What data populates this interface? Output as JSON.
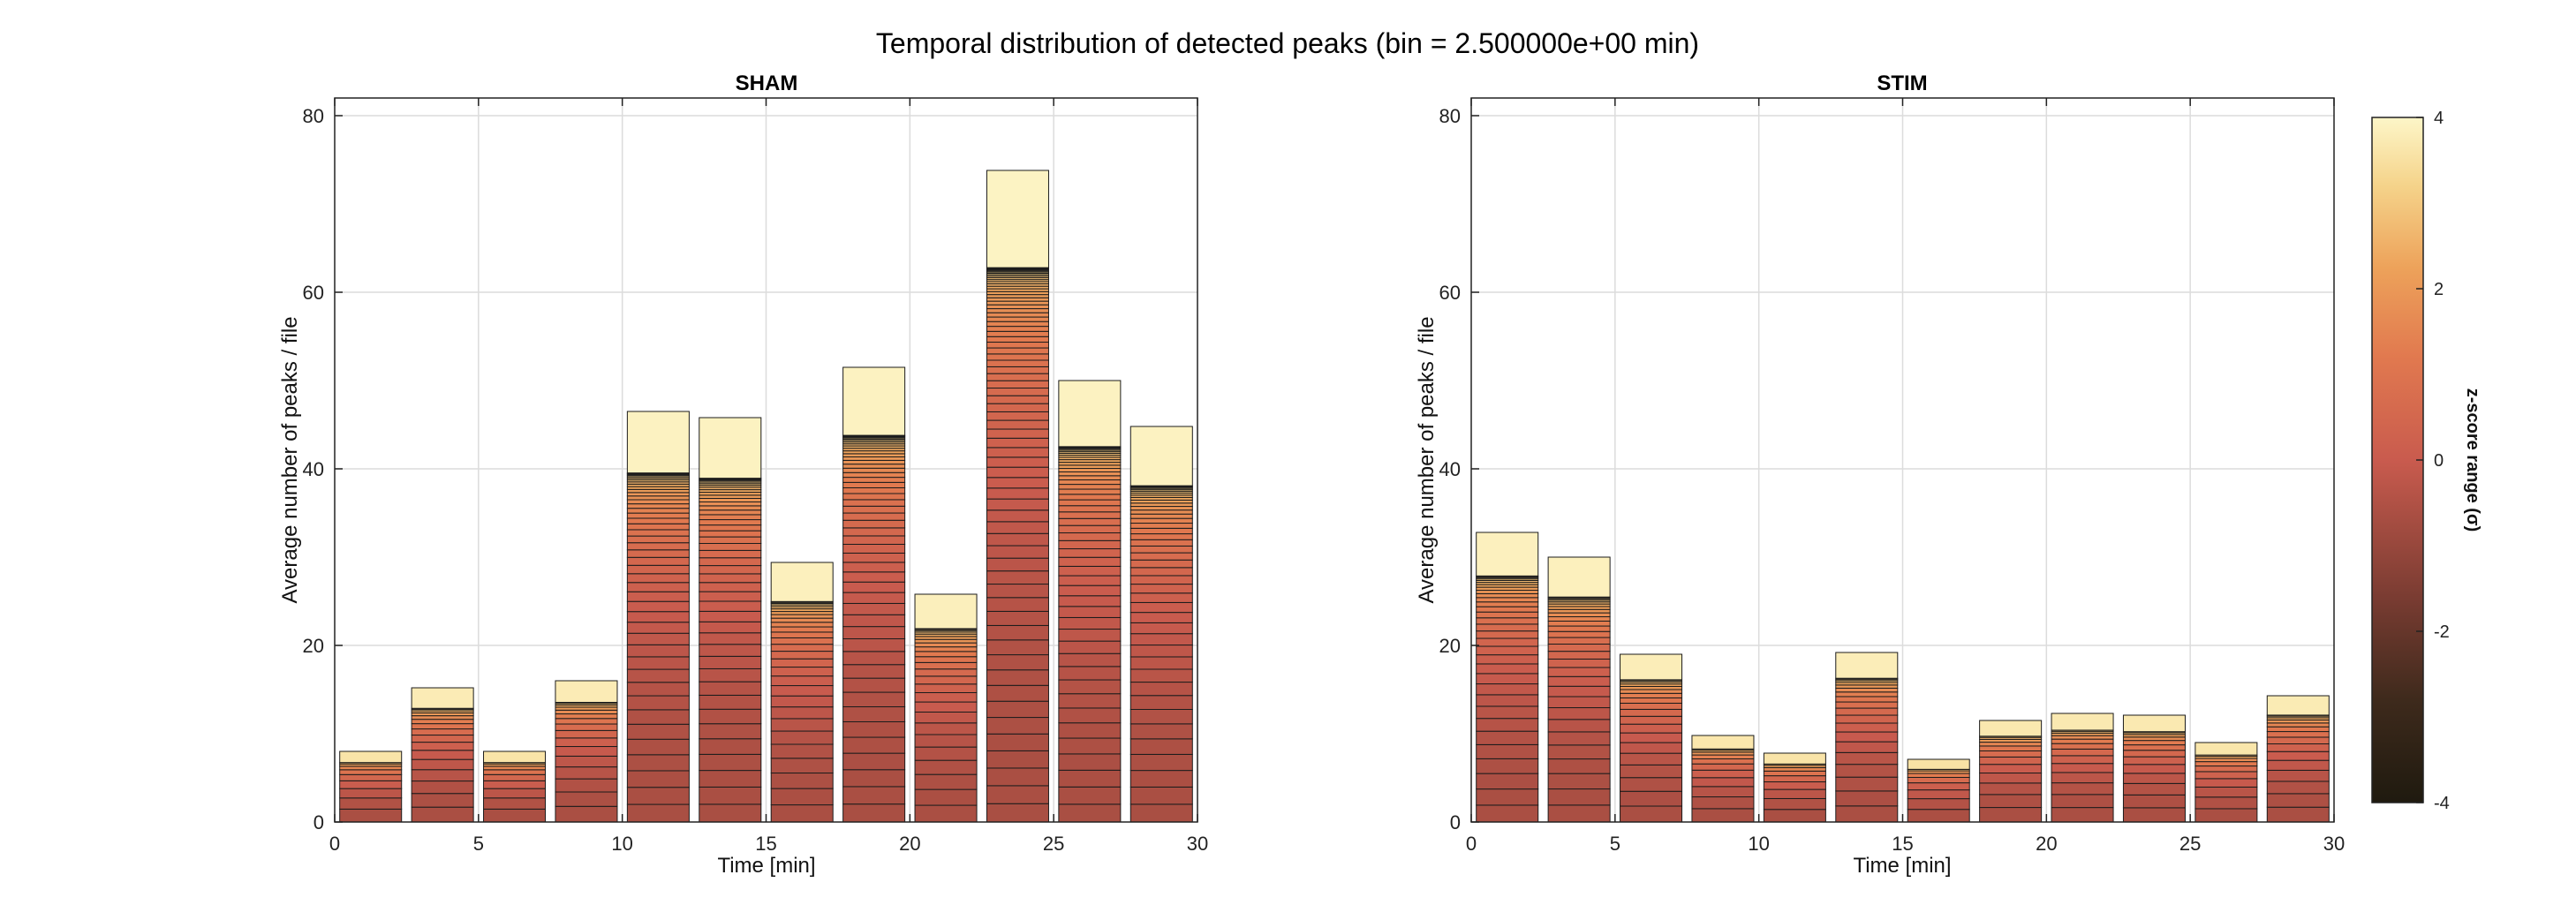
{
  "figure_title": "Temporal distribution of detected peaks (bin = 2.500000e+00 min)",
  "chart_data": [
    {
      "type": "bar",
      "title": "SHAM",
      "xlabel": "Time [min]",
      "ylabel": "Average number of peaks / file",
      "xlim": [
        0,
        30
      ],
      "ylim": [
        0,
        82
      ],
      "xticks": [
        0,
        5,
        10,
        15,
        20,
        25,
        30
      ],
      "yticks": [
        0,
        20,
        40,
        60,
        80
      ],
      "bin_width": 2.5,
      "x": [
        1.25,
        3.75,
        6.25,
        8.75,
        11.25,
        13.75,
        16.25,
        18.75,
        21.25,
        23.75,
        26.25,
        28.75
      ],
      "values": [
        8.0,
        15.2,
        8.0,
        16.0,
        46.5,
        45.8,
        29.4,
        51.5,
        25.8,
        73.8,
        50.0,
        44.8
      ],
      "grid": true,
      "stacked_by": "z-score range (σ)"
    },
    {
      "type": "bar",
      "title": "STIM",
      "xlabel": "Time [min]",
      "ylabel": "Average number of peaks / file",
      "xlim": [
        0,
        30
      ],
      "ylim": [
        0,
        82
      ],
      "xticks": [
        0,
        5,
        10,
        15,
        20,
        25,
        30
      ],
      "yticks": [
        0,
        20,
        40,
        60,
        80
      ],
      "bin_width": 2.5,
      "x": [
        1.25,
        3.75,
        6.25,
        8.75,
        11.25,
        13.75,
        16.25,
        18.75,
        21.25,
        23.75,
        26.25,
        28.75
      ],
      "values": [
        32.8,
        30.0,
        19.0,
        9.8,
        7.8,
        19.2,
        7.1,
        11.5,
        12.3,
        12.1,
        9.0,
        14.3
      ],
      "grid": true,
      "stacked_by": "z-score range (σ)"
    }
  ],
  "colorbar": {
    "label": "z-score range (σ)",
    "range": [
      -4,
      4
    ],
    "ticks": [
      -4,
      -2,
      0,
      2,
      4
    ],
    "colors": [
      "#1f1a0f",
      "#6a3a2a",
      "#c95b4e",
      "#e98a5a",
      "#f0b062",
      "#fdf6c8"
    ]
  }
}
